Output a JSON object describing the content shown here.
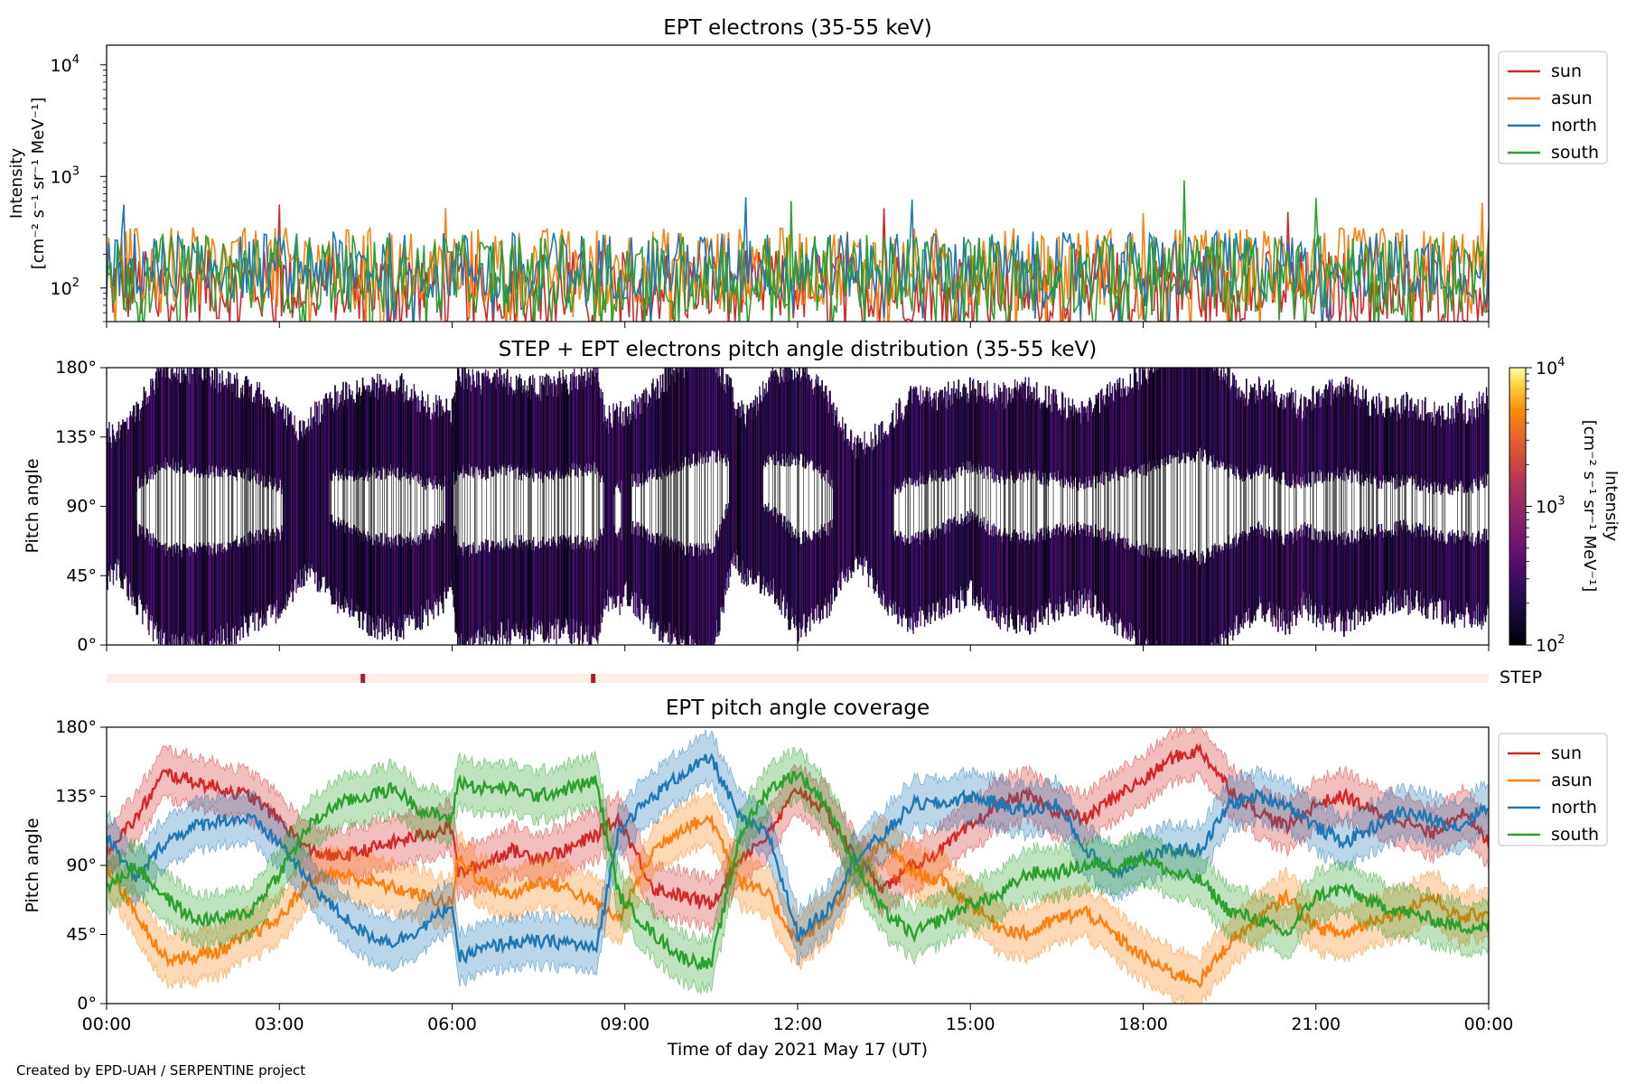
{
  "figure_credit": "Created by EPD-UAH / SERPENTINE project",
  "colors": {
    "sun": "#d62728",
    "asun": "#ff7f0e",
    "north": "#1f77b4",
    "south": "#2ca02c"
  },
  "chart_data": [
    {
      "type": "line",
      "title": "EPT electrons (35-55 keV)",
      "ylabel_line1": "Intensity",
      "ylabel_line2": "[cm⁻² s⁻¹ sr⁻¹ MeV⁻¹]",
      "yscale": "log",
      "ylim": [
        50,
        15000
      ],
      "yticks": [
        {
          "base": "10",
          "exp": "2",
          "value": 100
        },
        {
          "base": "10",
          "exp": "3",
          "value": 1000
        },
        {
          "base": "10",
          "exp": "4",
          "value": 10000
        }
      ],
      "xlim_hours": [
        0,
        24
      ],
      "legend_position": "upper-right-outside",
      "series": [
        {
          "name": "sun",
          "color": "#d62728",
          "typical_range": [
            50,
            220
          ],
          "peaks": [
            [
              3.0,
              560
            ],
            [
              13.5,
              520
            ],
            [
              20.5,
              480
            ]
          ]
        },
        {
          "name": "asun",
          "color": "#ff7f0e",
          "typical_range": [
            70,
            350
          ],
          "peaks": [
            [
              5.9,
              520
            ],
            [
              18.0,
              470
            ],
            [
              23.9,
              580
            ]
          ]
        },
        {
          "name": "north",
          "color": "#1f77b4",
          "typical_range": [
            80,
            320
          ],
          "peaks": [
            [
              0.3,
              560
            ],
            [
              11.1,
              650
            ],
            [
              14.0,
              620
            ]
          ]
        },
        {
          "name": "south",
          "color": "#2ca02c",
          "typical_range": [
            60,
            300
          ],
          "peaks": [
            [
              11.9,
              600
            ],
            [
              18.7,
              920
            ],
            [
              21.0,
              640
            ]
          ]
        }
      ]
    },
    {
      "type": "heatmap",
      "title": "STEP + EPT electrons pitch angle distribution (35-55 keV)",
      "ylabel": "Pitch angle",
      "yticks": [
        "0°",
        "45°",
        "90°",
        "135°",
        "180°"
      ],
      "ylim": [
        0,
        180
      ],
      "xlim_hours": [
        0,
        24
      ],
      "colorbar": {
        "label_line1": "Intensity",
        "label_line2": "[cm⁻² s⁻¹ sr⁻¹ MeV⁻¹]",
        "scale": "log",
        "range": [
          100,
          10000
        ],
        "ticks": [
          {
            "base": "10",
            "exp": "2",
            "value": 100
          },
          {
            "base": "10",
            "exp": "3",
            "value": 1000
          },
          {
            "base": "10",
            "exp": "4",
            "value": 10000
          }
        ],
        "colormap": "inferno"
      }
    },
    {
      "type": "bar",
      "label": "STEP",
      "markers_hours": [
        4.45,
        8.45
      ]
    },
    {
      "type": "line",
      "title": "EPT pitch angle coverage",
      "ylabel": "Pitch angle",
      "yticks": [
        "0°",
        "45°",
        "90°",
        "135°",
        "180°"
      ],
      "ylim": [
        0,
        180
      ],
      "xlabel": "Time of day 2021 May 17 (UT)",
      "xticks": [
        "00:00",
        "03:00",
        "06:00",
        "09:00",
        "12:00",
        "15:00",
        "18:00",
        "21:00",
        "00:00"
      ],
      "xlim_hours": [
        0,
        24
      ],
      "legend_position": "upper-right-outside",
      "x_hours": [
        0,
        0.5,
        1,
        1.5,
        2,
        2.5,
        3,
        3.5,
        4,
        4.5,
        5,
        5.5,
        6,
        6.1,
        6.5,
        7,
        7.5,
        8,
        8.5,
        8.9,
        9.5,
        10,
        10.5,
        11,
        11.5,
        12,
        12.5,
        13,
        13.5,
        14,
        14.5,
        15,
        15.5,
        16,
        16.5,
        17,
        17.5,
        18,
        18.5,
        19,
        19.5,
        20,
        20.5,
        21,
        21.5,
        22,
        22.5,
        23,
        23.5,
        24
      ],
      "series": [
        {
          "name": "sun",
          "color": "#d62728",
          "y": [
            100,
            120,
            150,
            145,
            140,
            135,
            120,
            100,
            95,
            100,
            105,
            110,
            115,
            85,
            90,
            100,
            95,
            100,
            110,
            120,
            75,
            70,
            65,
            95,
            110,
            140,
            125,
            95,
            75,
            90,
            100,
            115,
            130,
            135,
            125,
            120,
            135,
            145,
            160,
            165,
            140,
            125,
            115,
            130,
            135,
            125,
            120,
            110,
            125,
            105
          ]
        },
        {
          "name": "asun",
          "color": "#ff7f0e",
          "y": [
            90,
            60,
            30,
            30,
            35,
            45,
            55,
            80,
            85,
            80,
            75,
            70,
            65,
            95,
            80,
            70,
            80,
            75,
            65,
            55,
            100,
            115,
            120,
            80,
            70,
            40,
            55,
            85,
            105,
            85,
            80,
            65,
            50,
            45,
            55,
            60,
            45,
            30,
            20,
            15,
            40,
            55,
            70,
            50,
            45,
            55,
            60,
            70,
            55,
            60
          ]
        },
        {
          "name": "north",
          "color": "#1f77b4",
          "y": [
            110,
            80,
            105,
            115,
            120,
            120,
            105,
            80,
            60,
            45,
            40,
            50,
            65,
            30,
            35,
            40,
            40,
            40,
            35,
            115,
            135,
            150,
            160,
            120,
            110,
            45,
            60,
            95,
            110,
            130,
            130,
            135,
            130,
            125,
            130,
            100,
            85,
            95,
            100,
            100,
            130,
            135,
            130,
            115,
            105,
            115,
            125,
            120,
            115,
            130
          ]
        },
        {
          "name": "south",
          "color": "#2ca02c",
          "y": [
            75,
            90,
            70,
            55,
            55,
            60,
            85,
            115,
            130,
            135,
            140,
            125,
            120,
            145,
            140,
            140,
            135,
            140,
            145,
            70,
            45,
            30,
            25,
            110,
            140,
            150,
            130,
            90,
            60,
            45,
            55,
            65,
            70,
            85,
            85,
            90,
            90,
            95,
            85,
            80,
            60,
            55,
            45,
            70,
            75,
            65,
            60,
            55,
            50,
            50
          ]
        }
      ]
    }
  ]
}
